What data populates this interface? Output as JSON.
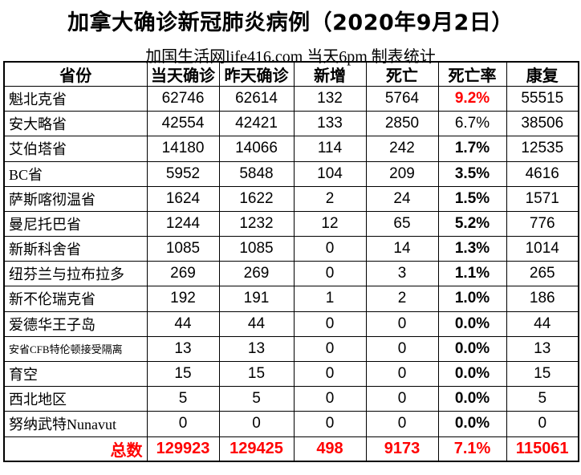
{
  "page": {
    "title": "加拿大确诊新冠肺炎病例（2020年9月2日）",
    "subtitle": "加国生活网life416.com 当天6pm 制表统计"
  },
  "colors": {
    "highlight_red": "#FF0000",
    "text": "#000000",
    "border": "#000000",
    "background": "#FFFFFF"
  },
  "table": {
    "headers": [
      "省份",
      "当天确诊",
      "昨天确诊",
      "新增",
      "死亡",
      "死亡率",
      "康复"
    ],
    "rows": [
      {
        "province": "魁北克省",
        "today": "62746",
        "yesterday": "62614",
        "new": "132",
        "deaths": "5764",
        "death_rate": "9.2%",
        "recovered": "55515",
        "rate_bold": true,
        "rate_red": true,
        "small_font": false
      },
      {
        "province": "安大略省",
        "today": "42554",
        "yesterday": "42421",
        "new": "133",
        "deaths": "2850",
        "death_rate": "6.7%",
        "recovered": "38506",
        "rate_bold": false,
        "rate_red": false,
        "small_font": false
      },
      {
        "province": "艾伯塔省",
        "today": "14180",
        "yesterday": "14066",
        "new": "114",
        "deaths": "242",
        "death_rate": "1.7%",
        "recovered": "12535",
        "rate_bold": true,
        "rate_red": false,
        "small_font": false
      },
      {
        "province": "BC省",
        "today": "5952",
        "yesterday": "5848",
        "new": "104",
        "deaths": "209",
        "death_rate": "3.5%",
        "recovered": "4616",
        "rate_bold": true,
        "rate_red": false,
        "small_font": false
      },
      {
        "province": "萨斯喀彻温省",
        "today": "1624",
        "yesterday": "1622",
        "new": "2",
        "deaths": "24",
        "death_rate": "1.5%",
        "recovered": "1571",
        "rate_bold": true,
        "rate_red": false,
        "small_font": false
      },
      {
        "province": "曼尼托巴省",
        "today": "1244",
        "yesterday": "1232",
        "new": "12",
        "deaths": "65",
        "death_rate": "5.2%",
        "recovered": "776",
        "rate_bold": true,
        "rate_red": false,
        "small_font": false
      },
      {
        "province": "新斯科舍省",
        "today": "1085",
        "yesterday": "1085",
        "new": "0",
        "deaths": "14",
        "death_rate": "1.3%",
        "recovered": "1014",
        "rate_bold": true,
        "rate_red": false,
        "small_font": false
      },
      {
        "province": "纽芬兰与拉布拉多",
        "today": "269",
        "yesterday": "269",
        "new": "0",
        "deaths": "3",
        "death_rate": "1.1%",
        "recovered": "265",
        "rate_bold": true,
        "rate_red": false,
        "small_font": false
      },
      {
        "province": "新不伦瑞克省",
        "today": "192",
        "yesterday": "191",
        "new": "1",
        "deaths": "2",
        "death_rate": "1.0%",
        "recovered": "186",
        "rate_bold": true,
        "rate_red": false,
        "small_font": false
      },
      {
        "province": "爱德华王子岛",
        "today": "44",
        "yesterday": "44",
        "new": "0",
        "deaths": "0",
        "death_rate": "0.0%",
        "recovered": "44",
        "rate_bold": true,
        "rate_red": false,
        "small_font": false
      },
      {
        "province": "安省CFB特伦顿接受隔离",
        "today": "13",
        "yesterday": "13",
        "new": "0",
        "deaths": "0",
        "death_rate": "0.0%",
        "recovered": "13",
        "rate_bold": true,
        "rate_red": false,
        "small_font": true
      },
      {
        "province": "育空",
        "today": "15",
        "yesterday": "15",
        "new": "0",
        "deaths": "0",
        "death_rate": "0.0%",
        "recovered": "15",
        "rate_bold": true,
        "rate_red": false,
        "small_font": false
      },
      {
        "province": "西北地区",
        "today": "5",
        "yesterday": "5",
        "new": "0",
        "deaths": "0",
        "death_rate": "0.0%",
        "recovered": "5",
        "rate_bold": true,
        "rate_red": false,
        "small_font": false
      },
      {
        "province": "努纳武特Nunavut",
        "today": "0",
        "yesterday": "0",
        "new": "0",
        "deaths": "0",
        "death_rate": "0.0%",
        "recovered": "0",
        "rate_bold": true,
        "rate_red": false,
        "small_font": false
      }
    ],
    "total": {
      "label": "总数",
      "today": "129923",
      "yesterday": "129425",
      "new": "498",
      "deaths": "9173",
      "death_rate": "7.1%",
      "recovered": "115061"
    }
  },
  "chart_data": {
    "type": "table",
    "title": "加拿大确诊新冠肺炎病例（2020年9月2日）",
    "subtitle": "加国生活网life416.com 当天6pm 制表统计",
    "columns": [
      "省份",
      "当天确诊",
      "昨天确诊",
      "新增",
      "死亡",
      "死亡率",
      "康复"
    ],
    "rows": [
      [
        "魁北克省",
        62746,
        62614,
        132,
        5764,
        "9.2%",
        55515
      ],
      [
        "安大略省",
        42554,
        42421,
        133,
        2850,
        "6.7%",
        38506
      ],
      [
        "艾伯塔省",
        14180,
        14066,
        114,
        242,
        "1.7%",
        12535
      ],
      [
        "BC省",
        5952,
        5848,
        104,
        209,
        "3.5%",
        4616
      ],
      [
        "萨斯喀彻温省",
        1624,
        1622,
        2,
        24,
        "1.5%",
        1571
      ],
      [
        "曼尼托巴省",
        1244,
        1232,
        12,
        65,
        "5.2%",
        776
      ],
      [
        "新斯科舍省",
        1085,
        1085,
        0,
        14,
        "1.3%",
        1014
      ],
      [
        "纽芬兰与拉布拉多",
        269,
        269,
        0,
        3,
        "1.1%",
        265
      ],
      [
        "新不伦瑞克省",
        192,
        191,
        1,
        2,
        "1.0%",
        186
      ],
      [
        "爱德华王子岛",
        44,
        44,
        0,
        0,
        "0.0%",
        44
      ],
      [
        "安省CFB特伦顿接受隔离",
        13,
        13,
        0,
        0,
        "0.0%",
        13
      ],
      [
        "育空",
        15,
        15,
        0,
        0,
        "0.0%",
        15
      ],
      [
        "西北地区",
        5,
        5,
        0,
        0,
        "0.0%",
        5
      ],
      [
        "努纳武特Nunavut",
        0,
        0,
        0,
        0,
        "0.0%",
        0
      ]
    ],
    "total_row": [
      "总数",
      129923,
      129425,
      498,
      9173,
      "7.1%",
      115061
    ],
    "highlight": "死亡率 9.2% (魁北克省) and entire 总数 row shown in red"
  }
}
